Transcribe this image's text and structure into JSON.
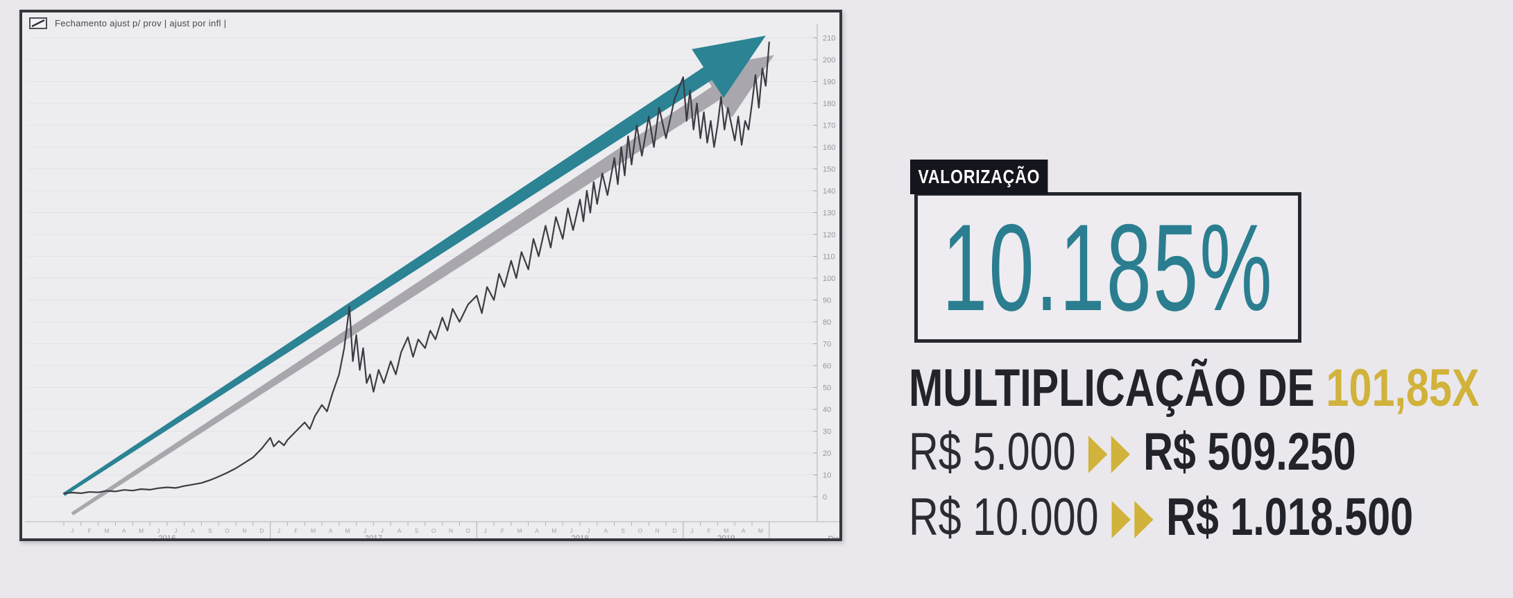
{
  "chart": {
    "legend": {
      "icon": "mini-line-chart-icon",
      "label": "Fechamento  ajust p/ prov | ajust por infl |"
    }
  },
  "panel": {
    "tag": "VALORIZAÇÃO",
    "percentage": "10.185%",
    "multiplication_prefix": "MULTIPLICAÇÃO DE ",
    "multiplication_value": "101,85X",
    "rows": [
      {
        "from": "R$ 5.000",
        "to": "R$ 509.250"
      },
      {
        "from": "R$ 10.000",
        "to": "R$ 1.018.500"
      }
    ],
    "colors": {
      "teal": "#2b7e90",
      "gold": "#d1b23a",
      "dark": "#23232b",
      "tag_bg": "#15151d"
    }
  },
  "chart_data": {
    "type": "line",
    "title": "",
    "xlabel": "Dia",
    "ylabel": "",
    "x_unit": "months_since_2016_01",
    "ylim": [
      0,
      215
    ],
    "yticks": [
      0,
      10,
      20,
      30,
      40,
      50,
      60,
      70,
      80,
      90,
      100,
      110,
      120,
      130,
      140,
      150,
      160,
      170,
      180,
      190,
      200,
      210
    ],
    "grid": "faint-horizontal",
    "years": [
      {
        "label": "2016",
        "months": [
          "J",
          "F",
          "M",
          "A",
          "M",
          "J",
          "J",
          "A",
          "S",
          "O",
          "N",
          "D"
        ]
      },
      {
        "label": "2017",
        "months": [
          "J",
          "F",
          "M",
          "A",
          "M",
          "J",
          "J",
          "A",
          "S",
          "O",
          "N",
          "D"
        ]
      },
      {
        "label": "2018",
        "months": [
          "J",
          "F",
          "M",
          "A",
          "M",
          "J",
          "J",
          "A",
          "S",
          "O",
          "N",
          "D"
        ]
      },
      {
        "label": "2019",
        "months": [
          "J",
          "F",
          "M",
          "A",
          "M"
        ]
      }
    ],
    "series": [
      {
        "name": "Fechamento ajust p/ prov | ajust por infl |",
        "color": "#3b3b43",
        "points": [
          [
            0,
            1.5
          ],
          [
            0.5,
            1.9
          ],
          [
            1,
            1.6
          ],
          [
            1.5,
            2.2
          ],
          [
            2,
            2.0
          ],
          [
            2.5,
            2.7
          ],
          [
            3,
            2.4
          ],
          [
            3.5,
            3.1
          ],
          [
            4,
            2.8
          ],
          [
            4.5,
            3.5
          ],
          [
            5,
            3.2
          ],
          [
            5.5,
            3.9
          ],
          [
            6,
            4.3
          ],
          [
            6.5,
            4.0
          ],
          [
            7,
            4.9
          ],
          [
            7.5,
            5.6
          ],
          [
            8,
            6.3
          ],
          [
            8.5,
            7.6
          ],
          [
            9,
            9.2
          ],
          [
            9.5,
            11.0
          ],
          [
            10,
            13.0
          ],
          [
            10.5,
            15.5
          ],
          [
            11,
            18.0
          ],
          [
            11.5,
            22.0
          ],
          [
            12,
            27.0
          ],
          [
            12.2,
            23.0
          ],
          [
            12.5,
            25.5
          ],
          [
            12.8,
            23.5
          ],
          [
            13,
            26.0
          ],
          [
            13.5,
            30.0
          ],
          [
            14,
            34.0
          ],
          [
            14.3,
            31.0
          ],
          [
            14.6,
            37.0
          ],
          [
            15,
            42.0
          ],
          [
            15.3,
            39.0
          ],
          [
            15.6,
            47.0
          ],
          [
            16,
            56.0
          ],
          [
            16.3,
            68.0
          ],
          [
            16.6,
            87.0
          ],
          [
            16.8,
            62.0
          ],
          [
            17,
            74.0
          ],
          [
            17.2,
            58.0
          ],
          [
            17.4,
            68.0
          ],
          [
            17.6,
            52.0
          ],
          [
            17.8,
            56.0
          ],
          [
            18,
            48.0
          ],
          [
            18.3,
            58.0
          ],
          [
            18.6,
            52.0
          ],
          [
            19,
            62.0
          ],
          [
            19.3,
            56.0
          ],
          [
            19.6,
            66.0
          ],
          [
            20,
            73.0
          ],
          [
            20.3,
            64.0
          ],
          [
            20.6,
            72.0
          ],
          [
            21,
            68.0
          ],
          [
            21.3,
            76.0
          ],
          [
            21.6,
            72.0
          ],
          [
            22,
            82.0
          ],
          [
            22.3,
            76.0
          ],
          [
            22.6,
            86.0
          ],
          [
            23,
            80.0
          ],
          [
            23.5,
            88.0
          ],
          [
            24,
            92.0
          ],
          [
            24.3,
            84.0
          ],
          [
            24.6,
            96.0
          ],
          [
            25,
            90.0
          ],
          [
            25.3,
            102.0
          ],
          [
            25.6,
            96.0
          ],
          [
            26,
            108.0
          ],
          [
            26.3,
            100.0
          ],
          [
            26.6,
            112.0
          ],
          [
            27,
            104.0
          ],
          [
            27.3,
            118.0
          ],
          [
            27.6,
            110.0
          ],
          [
            28,
            124.0
          ],
          [
            28.3,
            114.0
          ],
          [
            28.6,
            128.0
          ],
          [
            29,
            118.0
          ],
          [
            29.3,
            132.0
          ],
          [
            29.6,
            122.0
          ],
          [
            30,
            136.0
          ],
          [
            30.2,
            126.0
          ],
          [
            30.4,
            140.0
          ],
          [
            30.6,
            130.0
          ],
          [
            30.8,
            144.0
          ],
          [
            31,
            134.0
          ],
          [
            31.3,
            148.0
          ],
          [
            31.6,
            138.0
          ],
          [
            32,
            155.0
          ],
          [
            32.2,
            143.0
          ],
          [
            32.4,
            160.0
          ],
          [
            32.6,
            147.0
          ],
          [
            32.8,
            165.0
          ],
          [
            33,
            152.0
          ],
          [
            33.3,
            170.0
          ],
          [
            33.6,
            156.0
          ],
          [
            34,
            174.0
          ],
          [
            34.3,
            160.0
          ],
          [
            34.6,
            178.0
          ],
          [
            35,
            164.0
          ],
          [
            35.5,
            182.0
          ],
          [
            36,
            192.0
          ],
          [
            36.2,
            172.0
          ],
          [
            36.4,
            186.0
          ],
          [
            36.6,
            168.0
          ],
          [
            36.8,
            180.0
          ],
          [
            37,
            164.0
          ],
          [
            37.2,
            176.0
          ],
          [
            37.4,
            162.0
          ],
          [
            37.6,
            172.0
          ],
          [
            37.8,
            160.0
          ],
          [
            38,
            170.0
          ],
          [
            38.2,
            183.0
          ],
          [
            38.4,
            168.0
          ],
          [
            38.6,
            178.0
          ],
          [
            39,
            163.0
          ],
          [
            39.2,
            174.0
          ],
          [
            39.4,
            161.0
          ],
          [
            39.6,
            172.0
          ],
          [
            39.8,
            168.0
          ],
          [
            40,
            180.0
          ],
          [
            40.2,
            193.0
          ],
          [
            40.4,
            178.0
          ],
          [
            40.6,
            196.0
          ],
          [
            40.8,
            188.0
          ],
          [
            41,
            208.0
          ]
        ]
      }
    ],
    "trend_arrow": {
      "from_month": 0,
      "from_value": 1,
      "to_month": 40.8,
      "to_value": 211,
      "color": "#2b8394",
      "shadow_color": "#a9a7ad"
    }
  }
}
